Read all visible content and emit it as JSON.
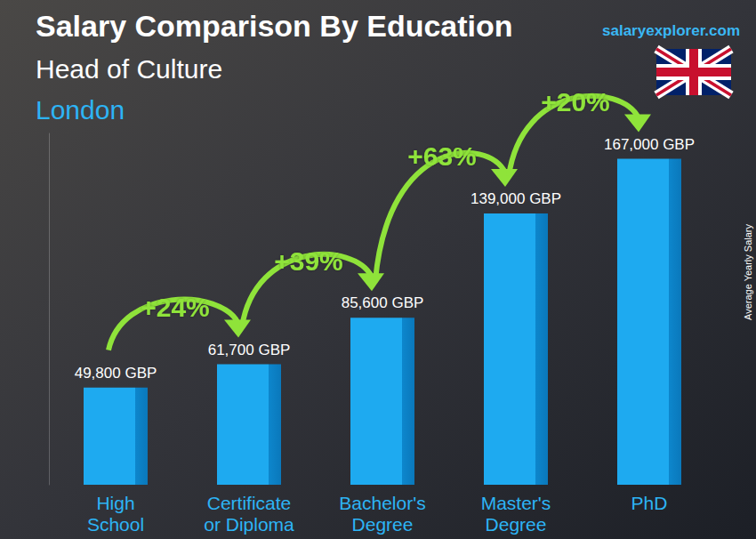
{
  "chart_data": {
    "type": "bar",
    "title": "Salary Comparison By Education",
    "subtitle": "Head of Culture",
    "location": "London",
    "source": "salaryexplorer.com",
    "y_label": "Average Yearly Salary",
    "categories": [
      "High School",
      "Certificate or Diploma",
      "Bachelor's Degree",
      "Master's Degree",
      "PhD"
    ],
    "values": [
      49800,
      61700,
      85600,
      139000,
      167000
    ],
    "value_labels": [
      "49,800 GBP",
      "61,700 GBP",
      "85,600 GBP",
      "139,000 GBP",
      "167,000 GBP"
    ],
    "annotations": [
      "+24%",
      "+39%",
      "+63%",
      "+20%"
    ],
    "color": "#1eaaf0",
    "ylim": [
      0,
      180000
    ],
    "data_labels": true,
    "tick_labels": "x",
    "grid": false
  }
}
